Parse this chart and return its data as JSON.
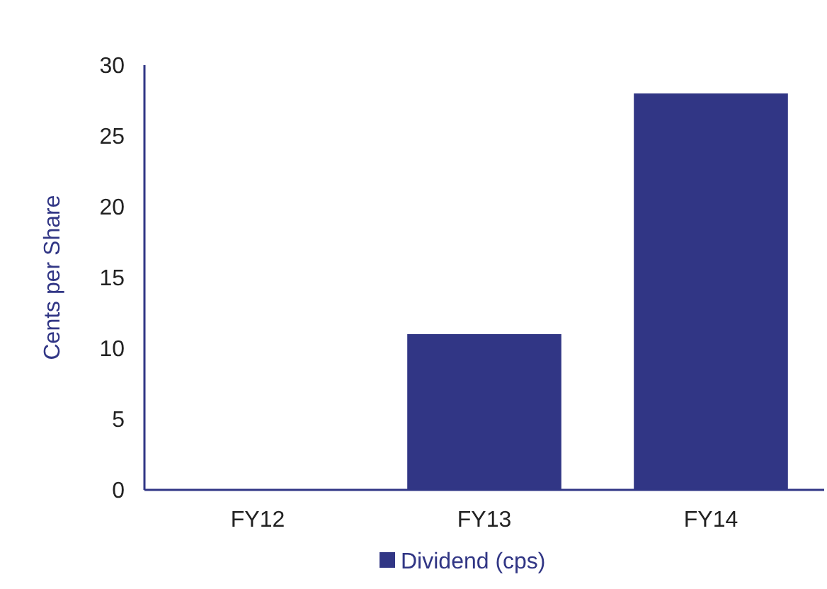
{
  "chart_data": {
    "type": "bar",
    "ylabel": "Cents per Share",
    "categories": [
      "FY12",
      "FY13",
      "FY14"
    ],
    "series": [
      {
        "name": "Dividend (cps)",
        "color": "#313685",
        "values": [
          0,
          11,
          28
        ]
      }
    ],
    "ylim": [
      0,
      30
    ],
    "yticks": [
      0,
      5,
      10,
      15,
      20,
      25,
      30
    ],
    "grid": false,
    "legend": "bottom"
  }
}
